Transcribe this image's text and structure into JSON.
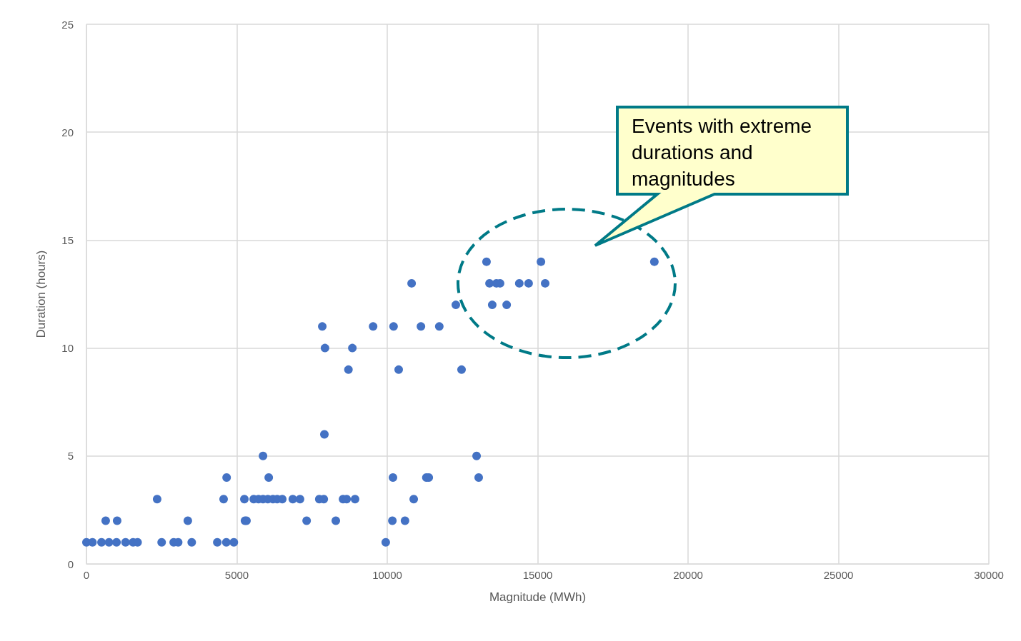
{
  "chart_data": {
    "type": "scatter",
    "xlabel": "Magnitude (MWh)",
    "ylabel": "Duration (hours)",
    "xlim": [
      0,
      30000
    ],
    "xticks": [
      0,
      5000,
      10000,
      15000,
      20000,
      25000,
      30000
    ],
    "ylim": [
      0,
      25
    ],
    "yticks": [
      0,
      5,
      10,
      15,
      20,
      25
    ],
    "grid": true,
    "marker": "circle",
    "annotations": [
      "Events with extreme durations and magnitudes"
    ],
    "series": [
      {
        "color": "#4472c4",
        "x": [
          0,
          200,
          500,
          750,
          1000,
          1300,
          1550,
          1700,
          2500,
          2900,
          3050,
          3500,
          4350,
          4650,
          4900,
          9950,
          640,
          1020,
          3370,
          5270,
          5320,
          7320,
          8290,
          10170,
          10590,
          2350,
          4560,
          5250,
          5560,
          5720,
          5870,
          6030,
          6200,
          6340,
          6510,
          6860,
          7100,
          7740,
          7890,
          8530,
          8650,
          8930,
          10880,
          4660,
          6060,
          10190,
          11300,
          11380,
          13040,
          5870,
          12970,
          7910,
          8710,
          10380,
          12470,
          7930,
          8840,
          7840,
          9530,
          10210,
          11120,
          11730,
          12280,
          13490,
          13970,
          10810,
          13400,
          13630,
          13750,
          14390,
          14700,
          15250,
          13300,
          15110,
          18880
        ],
        "values": [
          1,
          1,
          1,
          1,
          1,
          1,
          1,
          1,
          1,
          1,
          1,
          1,
          1,
          1,
          1,
          1,
          2,
          2,
          2,
          2,
          2,
          2,
          2,
          2,
          2,
          3,
          3,
          3,
          3,
          3,
          3,
          3,
          3,
          3,
          3,
          3,
          3,
          3,
          3,
          3,
          3,
          3,
          3,
          4,
          4,
          4,
          4,
          4,
          4,
          5,
          5,
          6,
          9,
          9,
          9,
          10,
          10,
          11,
          11,
          11,
          11,
          11,
          12,
          12,
          12,
          13,
          13,
          13,
          13,
          13,
          13,
          13,
          14,
          14,
          14
        ]
      }
    ]
  }
}
